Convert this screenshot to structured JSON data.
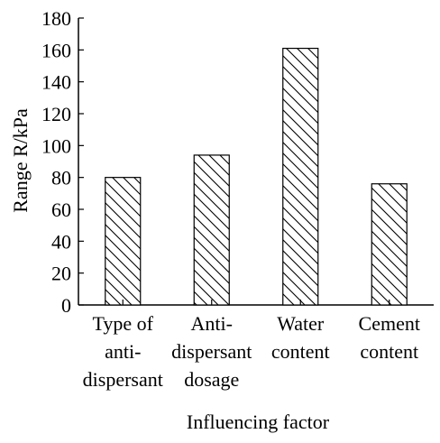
{
  "chart_data": {
    "type": "bar",
    "categories": [
      [
        "Type of",
        "anti-",
        "dispersant"
      ],
      [
        "Anti-",
        "dispersant",
        "dosage"
      ],
      [
        "Water",
        "content"
      ],
      [
        "Cement",
        "content"
      ]
    ],
    "values": [
      80,
      94,
      161,
      76
    ],
    "xlabel": "Influencing factor",
    "ylabel": "Range R/kPa",
    "ylim": [
      0,
      180
    ],
    "yticks": [
      0,
      20,
      40,
      60,
      80,
      100,
      120,
      140,
      160,
      180
    ],
    "grid": false,
    "bar_fill": "hatched-diagonal",
    "colors": {
      "bar_stroke": "#000000",
      "hatch": "#000000",
      "background": "#ffffff"
    }
  }
}
